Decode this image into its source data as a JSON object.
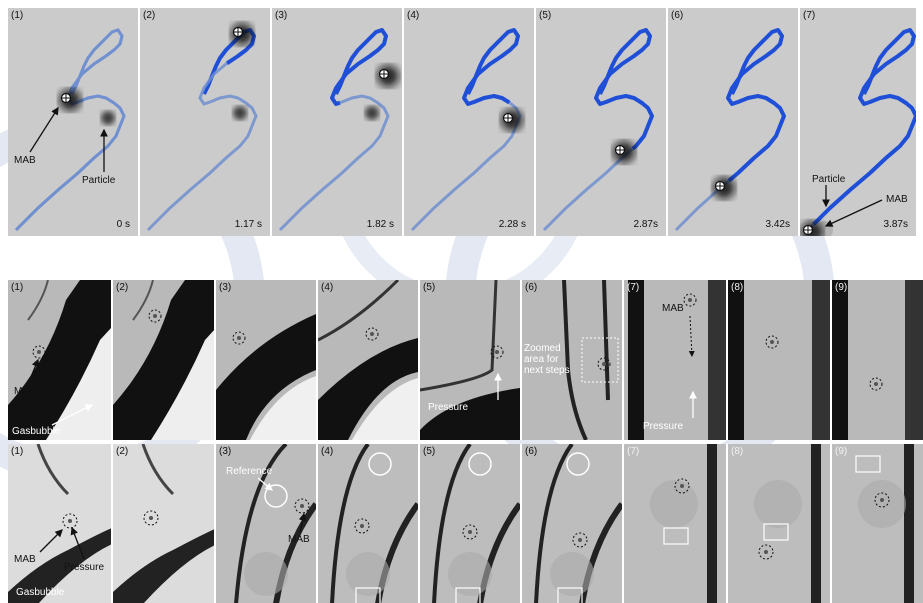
{
  "row_top": {
    "panels": [
      {
        "label": "(1)",
        "time": "0 s"
      },
      {
        "label": "(2)",
        "time": "1.17 s"
      },
      {
        "label": "(3)",
        "time": "1.82 s"
      },
      {
        "label": "(4)",
        "time": "2.28 s"
      },
      {
        "label": "(5)",
        "time": "2.87s"
      },
      {
        "label": "(6)",
        "time": "3.42s"
      },
      {
        "label": "(7)",
        "time": "3.87s"
      }
    ],
    "annotations": {
      "mab_1": "MAB",
      "particle_1": "Particle",
      "particle_7": "Particle",
      "mab_7": "MAB"
    }
  },
  "row_mid": {
    "panels": [
      {
        "label": "(1)"
      },
      {
        "label": "(2)"
      },
      {
        "label": "(3)"
      },
      {
        "label": "(4)"
      },
      {
        "label": "(5)"
      },
      {
        "label": "(6)"
      },
      {
        "label": "(7)"
      },
      {
        "label": "(8)"
      },
      {
        "label": "(9)"
      }
    ],
    "annotations": {
      "mab_1": "MAB",
      "gasbubble_1": "Gasbubble",
      "pressure_5": "Pressure",
      "zoomed_6": "Zoomed area for next steps",
      "mab_7": "MAB",
      "pressure_7": "Pressure"
    }
  },
  "row_bot": {
    "panels": [
      {
        "label": "(1)"
      },
      {
        "label": "(2)"
      },
      {
        "label": "(3)"
      },
      {
        "label": "(4)"
      },
      {
        "label": "(5)"
      },
      {
        "label": "(6)"
      },
      {
        "label": "(7)"
      },
      {
        "label": "(8)"
      },
      {
        "label": "(9)"
      }
    ],
    "annotations": {
      "mab_1": "MAB",
      "pressure_1": "Pressure",
      "gasbubble_1": "Gasbubble",
      "reference_3": "Reference",
      "mab_3": "MAB"
    }
  },
  "colors": {
    "trajectory": "#1f4fd6",
    "trajectory_faint": "#6f8fd0",
    "panel_bg": "#c9c9c9",
    "channel_dark": "#1a1a1a"
  }
}
